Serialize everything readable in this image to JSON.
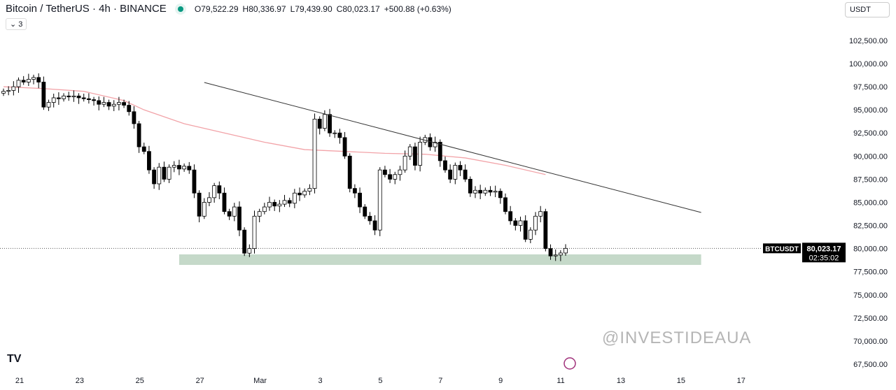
{
  "header": {
    "title": "Bitcoin / TetherUS · 4h · BINANCE",
    "open": "O79,522.29",
    "high": "H80,336.97",
    "low": "L79,439.90",
    "close": "C80,023.17",
    "change": "+500.88 (+0.63%)",
    "indicators_toggle": "3",
    "currency": "USDT"
  },
  "price_label": {
    "symbol": "BTCUSDT",
    "price": "80,023.17",
    "countdown": "02:35:02"
  },
  "watermark": "@INVESTIDEAUA",
  "colors": {
    "up": "#ffffff",
    "down": "#000000",
    "ma": "#f2a3a8",
    "zone": "#c5d9c9",
    "trend": "#333333"
  },
  "chart_data": {
    "type": "candlestick",
    "ylim": [
      66500,
      104000
    ],
    "y_ticks": [
      "102,500.00",
      "100,000.00",
      "97,500.00",
      "95,000.00",
      "92,500.00",
      "90,000.00",
      "87,500.00",
      "85,000.00",
      "82,500.00",
      "80,000.00",
      "77,500.00",
      "75,000.00",
      "72,500.00",
      "70,000.00",
      "67,500.00"
    ],
    "x_ticks": [
      "21",
      "23",
      "25",
      "27",
      "Mar",
      "3",
      "5",
      "7",
      "9",
      "11",
      "13",
      "15",
      "17"
    ],
    "closes": [
      97.0,
      97.1,
      97.5,
      98.2,
      98.0,
      98.3,
      98.5,
      98.0,
      95.3,
      95.8,
      96.3,
      96.2,
      96.5,
      96.4,
      96.5,
      96.3,
      96.2,
      96.1,
      96.0,
      95.6,
      95.8,
      95.4,
      95.6,
      95.8,
      95.5,
      94.8,
      93.5,
      91.0,
      90.5,
      88.5,
      87.0,
      88.8,
      87.5,
      88.8,
      89.0,
      88.6,
      88.9,
      88.5,
      86.0,
      83.5,
      85.0,
      85.5,
      86.8,
      86.0,
      84.0,
      83.5,
      84.5,
      82.0,
      79.5,
      80.0,
      83.5,
      84.0,
      84.5,
      85.0,
      84.6,
      84.8,
      85.2,
      84.9,
      86.0,
      85.8,
      86.2,
      86.5,
      94.0,
      93.0,
      94.5,
      92.5,
      92.5,
      92.0,
      90.0,
      86.5,
      86.0,
      84.5,
      83.5,
      83.0,
      82.0,
      88.5,
      88.0,
      87.5,
      88.0,
      88.5,
      90.0,
      91.0,
      89.0,
      91.5,
      92.0,
      91.0,
      91.5,
      89.5,
      88.5,
      87.5,
      89.0,
      88.5,
      87.5,
      86.0,
      86.3,
      86.0,
      86.3,
      86.1,
      86.2,
      85.5,
      84.0,
      83.0,
      82.5,
      83.0,
      81.0,
      82.0,
      83.5,
      84.0,
      80.0,
      79.2,
      79.3,
      79.52,
      80.02
    ],
    "closes_unit": "thousand USDT",
    "ma": [
      [
        0,
        97.5
      ],
      [
        8,
        97.3
      ],
      [
        16,
        97.0
      ],
      [
        24,
        96.0
      ],
      [
        28,
        95.0
      ],
      [
        36,
        93.5
      ],
      [
        44,
        92.5
      ],
      [
        52,
        91.5
      ],
      [
        60,
        90.7
      ],
      [
        68,
        90.5
      ],
      [
        76,
        90.3
      ],
      [
        84,
        90.2
      ],
      [
        92,
        89.8
      ],
      [
        100,
        89.0
      ],
      [
        108,
        88.0
      ]
    ],
    "trendline": [
      [
        40,
        97.96
      ],
      [
        139,
        83.9
      ]
    ],
    "support_zone": {
      "from": 35,
      "to": 139,
      "top": 79.37,
      "bottom": 78.23
    },
    "last_price": 80023.17
  }
}
